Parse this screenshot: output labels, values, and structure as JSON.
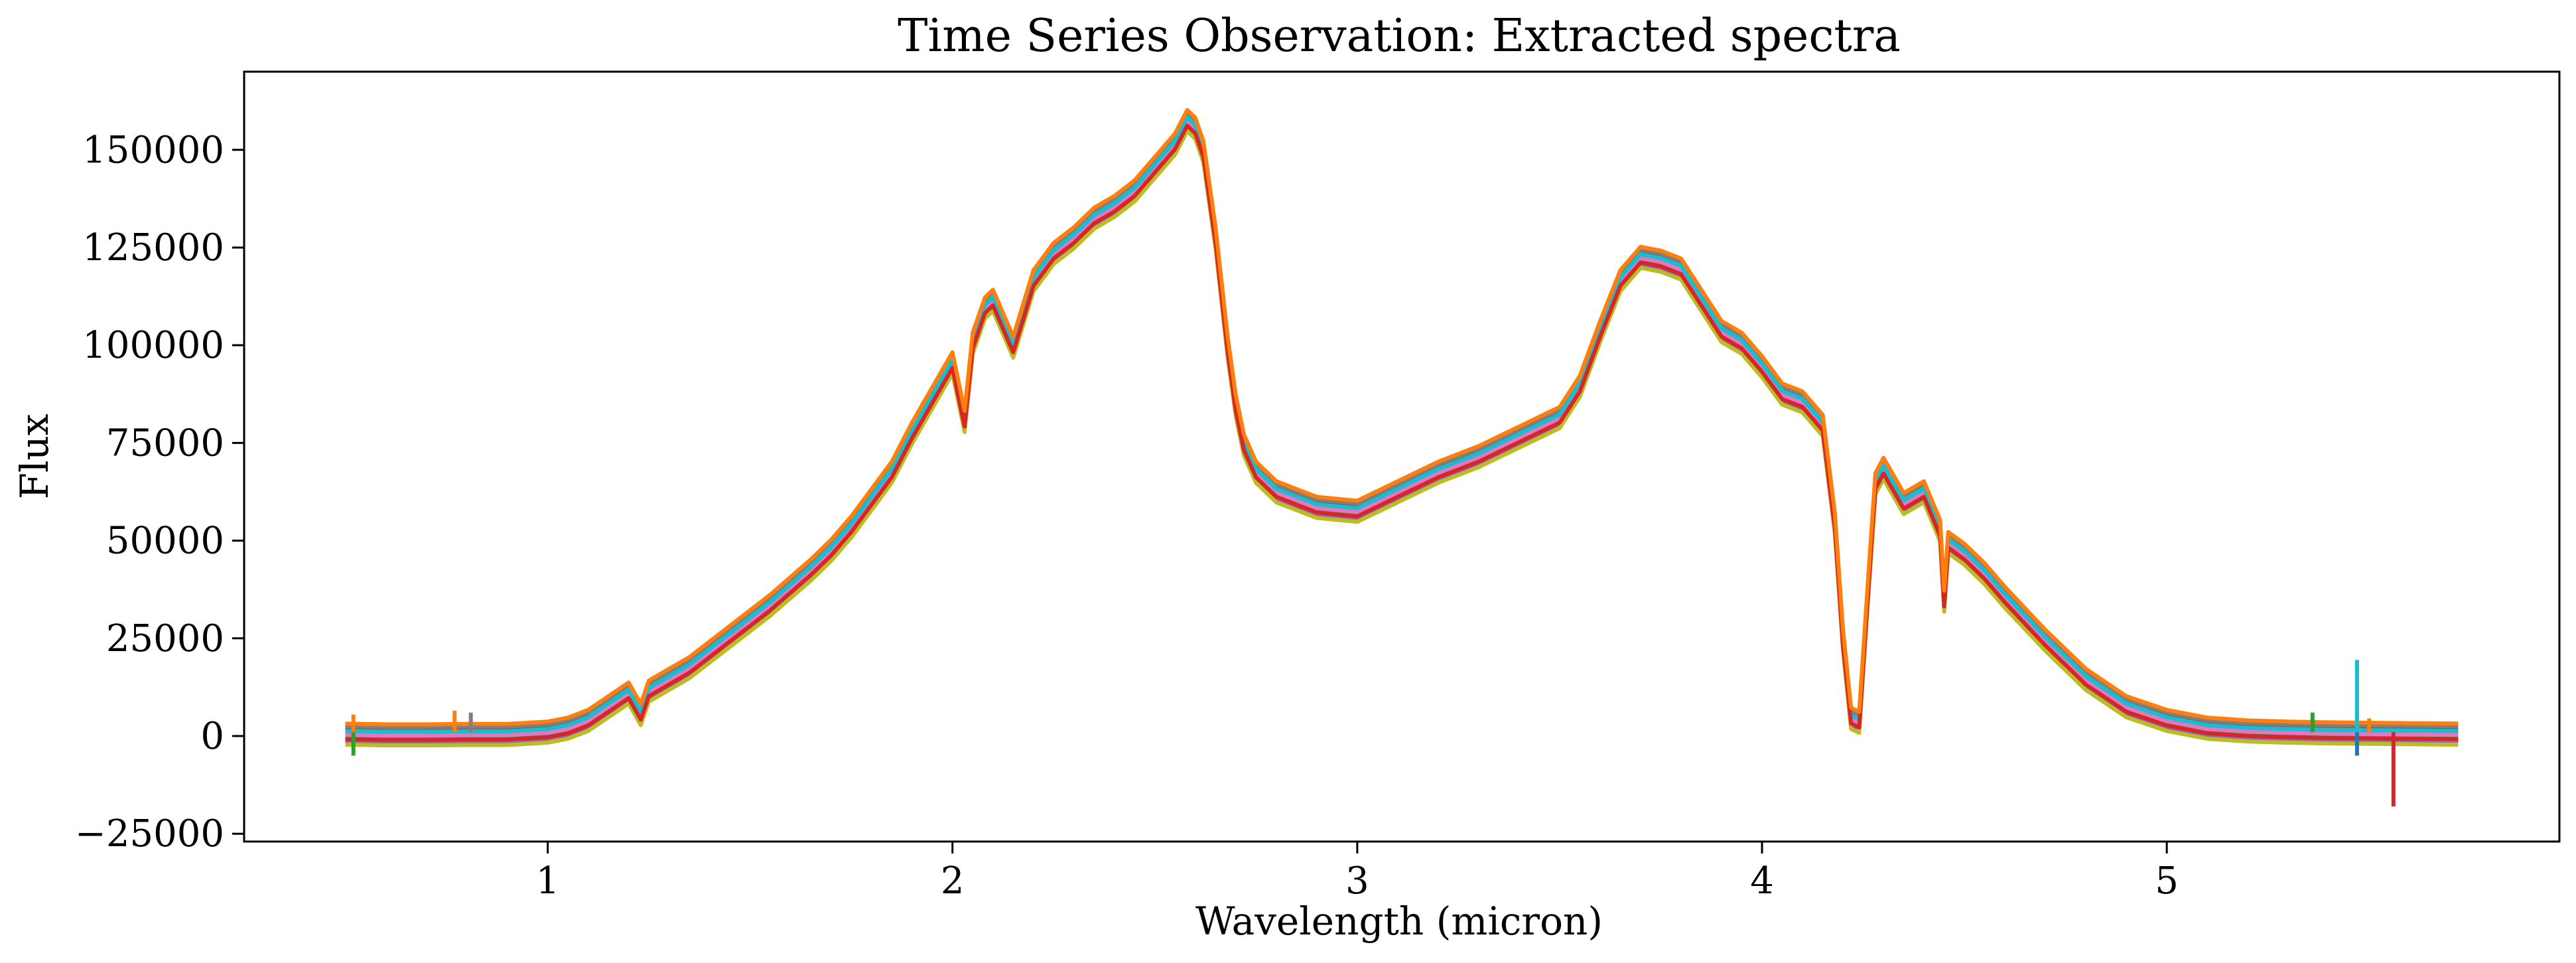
{
  "chart_data": {
    "type": "line",
    "title": "Time Series Observation: Extracted spectra",
    "xlabel": "Wavelength (micron)",
    "ylabel": "Flux",
    "xlim": [
      0.25,
      5.97
    ],
    "ylim": [
      -27000,
      170000
    ],
    "xticks": [
      1,
      2,
      3,
      4,
      5
    ],
    "xtick_labels": [
      "1",
      "2",
      "3",
      "4",
      "5"
    ],
    "yticks": [
      -25000,
      0,
      25000,
      50000,
      75000,
      100000,
      125000,
      150000
    ],
    "ytick_labels": [
      "−25000",
      "0",
      "25000",
      "50000",
      "75000",
      "100000",
      "125000",
      "150000"
    ],
    "grid": false,
    "legend": false,
    "series_count": 10,
    "series_colors": [
      "#1f77b4",
      "#2ca02c",
      "#9467bd",
      "#8c564b",
      "#e377c2",
      "#7f7f7f",
      "#bcbd22",
      "#17becf",
      "#d62728",
      "#ff7f0e"
    ],
    "series_offsets": [
      0,
      -1500,
      -2500,
      800,
      -700,
      1500,
      -3200,
      300,
      -1800,
      2200
    ],
    "x": [
      0.5,
      0.6,
      0.7,
      0.8,
      0.9,
      1.0,
      1.05,
      1.1,
      1.15,
      1.2,
      1.23,
      1.25,
      1.3,
      1.35,
      1.4,
      1.45,
      1.5,
      1.55,
      1.6,
      1.65,
      1.7,
      1.75,
      1.8,
      1.85,
      1.9,
      1.95,
      2.0,
      2.03,
      2.05,
      2.08,
      2.1,
      2.15,
      2.2,
      2.25,
      2.3,
      2.35,
      2.4,
      2.45,
      2.5,
      2.55,
      2.58,
      2.6,
      2.62,
      2.65,
      2.68,
      2.7,
      2.72,
      2.75,
      2.8,
      2.85,
      2.9,
      3.0,
      3.1,
      3.2,
      3.3,
      3.4,
      3.5,
      3.55,
      3.6,
      3.65,
      3.7,
      3.75,
      3.8,
      3.85,
      3.9,
      3.95,
      4.0,
      4.05,
      4.1,
      4.15,
      4.18,
      4.2,
      4.22,
      4.24,
      4.26,
      4.28,
      4.3,
      4.35,
      4.4,
      4.42,
      4.44,
      4.45,
      4.46,
      4.5,
      4.55,
      4.6,
      4.7,
      4.8,
      4.9,
      5.0,
      5.1,
      5.2,
      5.3,
      5.4,
      5.5,
      5.6,
      5.72
    ],
    "values": [
      1000,
      800,
      800,
      900,
      900,
      1500,
      2500,
      4500,
      8000,
      11500,
      6000,
      12000,
      15000,
      18000,
      22000,
      26000,
      30000,
      34000,
      38500,
      43000,
      48000,
      54000,
      61000,
      68000,
      78000,
      87000,
      96000,
      81000,
      101000,
      110000,
      112000,
      100000,
      117000,
      124000,
      128000,
      133000,
      136000,
      140000,
      146000,
      152000,
      158000,
      156000,
      150000,
      128000,
      100000,
      85000,
      75000,
      68000,
      63000,
      61000,
      59000,
      58000,
      63000,
      68000,
      72000,
      77000,
      82000,
      90000,
      104000,
      117000,
      123000,
      122000,
      120000,
      112000,
      104000,
      101000,
      95000,
      88000,
      86000,
      80000,
      55000,
      25000,
      5000,
      4000,
      35000,
      65000,
      69000,
      60000,
      63000,
      58000,
      53000,
      35000,
      50000,
      47000,
      42000,
      36000,
      25000,
      15000,
      8000,
      4500,
      2500,
      1800,
      1500,
      1300,
      1200,
      1100,
      1000
    ],
    "spikes": [
      {
        "x": 0.52,
        "value": -5000,
        "color": "#2ca02c"
      },
      {
        "x": 0.52,
        "value": 5500,
        "color": "#ff7f0e"
      },
      {
        "x": 0.77,
        "value": 6500,
        "color": "#ff7f0e"
      },
      {
        "x": 0.81,
        "value": 6000,
        "color": "#7f7f7f"
      },
      {
        "x": 5.36,
        "value": 6000,
        "color": "#2ca02c"
      },
      {
        "x": 5.47,
        "value": 19500,
        "color": "#17becf"
      },
      {
        "x": 5.47,
        "value": -5000,
        "color": "#1f77b4"
      },
      {
        "x": 5.56,
        "value": -18000,
        "color": "#d62728"
      },
      {
        "x": 5.5,
        "value": 4500,
        "color": "#ff7f0e"
      }
    ]
  }
}
